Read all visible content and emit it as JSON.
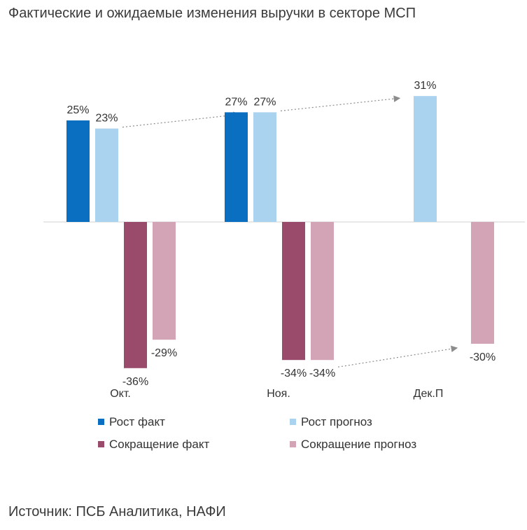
{
  "header": {
    "title": "Фактические и ожидаемые изменения выручки в секторе МСП"
  },
  "footer": {
    "source": "Источник: ПСБ Аналитика, НАФИ"
  },
  "chart_data": {
    "type": "bar",
    "categories": [
      "Окт.",
      "Ноя.",
      "Дек.П"
    ],
    "series": [
      {
        "name": "Рост факт",
        "values": [
          25,
          27,
          null
        ],
        "color": "#0b6fc1"
      },
      {
        "name": "Рост прогноз",
        "values": [
          23,
          27,
          31
        ],
        "color": "#a9d3ee"
      },
      {
        "name": "Сокращение факт",
        "values": [
          -36,
          -34,
          null
        ],
        "color": "#9a4a6a"
      },
      {
        "name": "Сокращение прогноз",
        "values": [
          -29,
          -34,
          -30
        ],
        "color": "#d3a4b5"
      }
    ],
    "data_labels_suffix": "%",
    "legend_position": "bottom",
    "grid": false,
    "ylim": [
      -40,
      35
    ]
  }
}
